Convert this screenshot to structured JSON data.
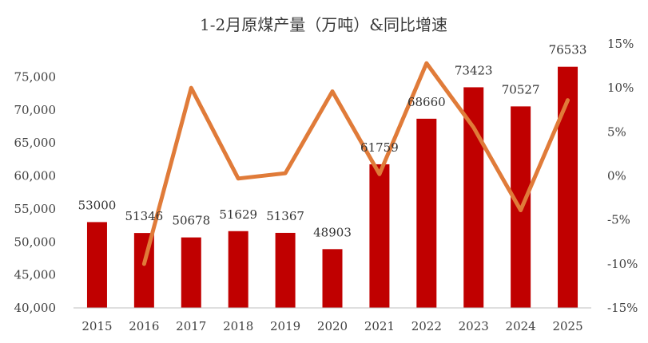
{
  "chart_data": {
    "type": "bar",
    "title": "1-2月原煤产量（万吨）&同比增速",
    "categories": [
      "2015",
      "2016",
      "2017",
      "2018",
      "2019",
      "2020",
      "2021",
      "2022",
      "2023",
      "2024",
      "2025"
    ],
    "series": [
      {
        "kind": "bar",
        "axis": "left",
        "values": [
          53000,
          51346,
          50678,
          51629,
          51367,
          48903,
          61759,
          68660,
          73423,
          70527,
          76533
        ],
        "color": "#c00000"
      },
      {
        "kind": "line",
        "axis": "right",
        "values": [
          null,
          -10.0,
          10.0,
          -0.3,
          0.3,
          9.6,
          0.2,
          12.8,
          5.5,
          -3.9,
          8.6
        ],
        "color": "#e07b39"
      }
    ],
    "y_left": {
      "lim": [
        40000,
        80000
      ],
      "ticks": [
        40000,
        45000,
        50000,
        55000,
        60000,
        65000,
        70000,
        75000
      ],
      "tick_labels": [
        "40,000",
        "45,000",
        "50,000",
        "55,000",
        "60,000",
        "65,000",
        "70,000",
        "75,000"
      ]
    },
    "y_right": {
      "lim": [
        -15,
        15
      ],
      "ticks": [
        -15,
        -10,
        -5,
        0,
        5,
        10,
        15
      ],
      "tick_labels": [
        "-15%",
        "-10%",
        "-5%",
        "0%",
        "5%",
        "10%",
        "15%"
      ]
    },
    "data_labels": [
      "53000",
      "51346",
      "50678",
      "51629",
      "51367",
      "48903",
      "61759",
      "68660",
      "73423",
      "70527",
      "76533"
    ],
    "grid": false,
    "legend": "none"
  }
}
